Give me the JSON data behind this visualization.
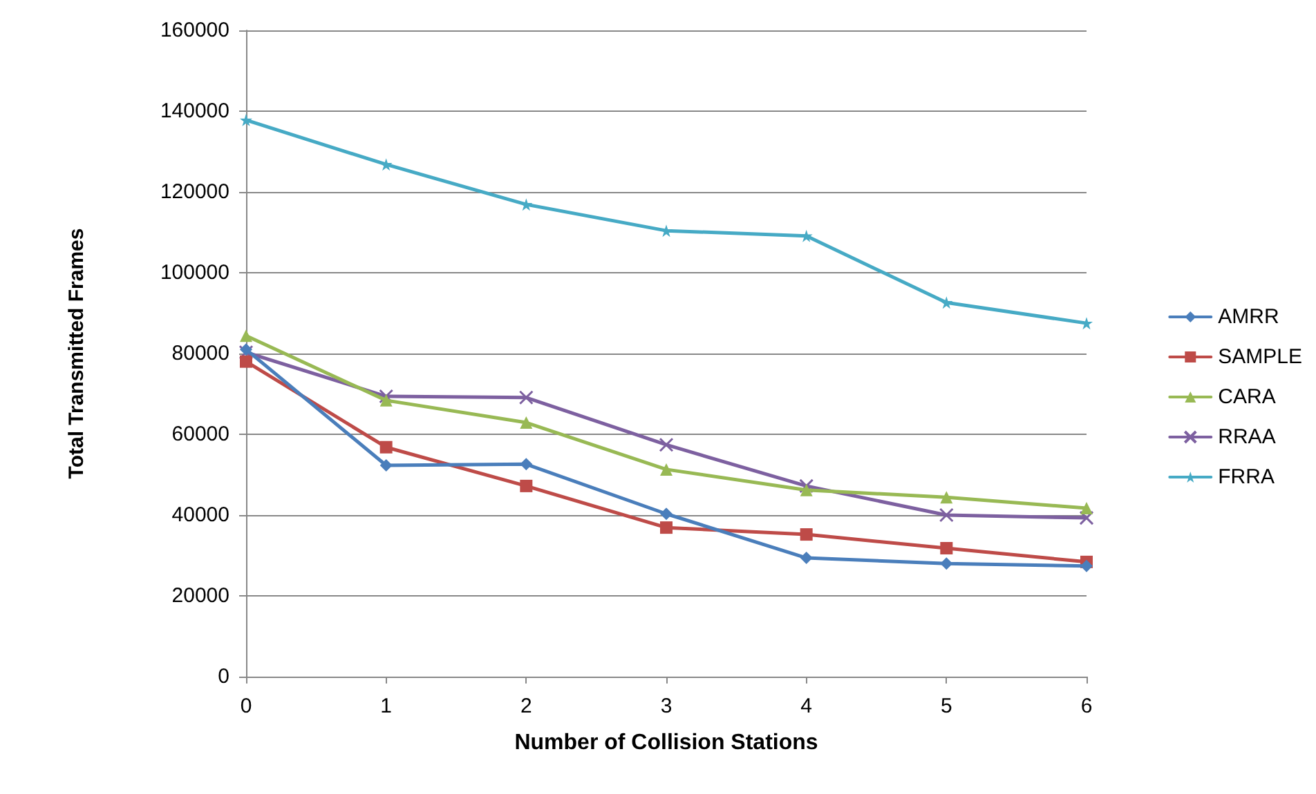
{
  "chart_data": {
    "type": "line",
    "xlabel": "Number of Collision Stations",
    "ylabel": "Total Transmitted Frames",
    "x": [
      0,
      1,
      2,
      3,
      4,
      5,
      6
    ],
    "xlim": [
      0,
      6
    ],
    "xticks": [
      0,
      1,
      2,
      3,
      4,
      5,
      6
    ],
    "ylim": [
      0,
      160000
    ],
    "yticks": [
      0,
      20000,
      40000,
      60000,
      80000,
      100000,
      120000,
      140000,
      160000
    ],
    "grid": "y",
    "legend": "right",
    "line_style": "solid",
    "series": [
      {
        "name": "AMRR",
        "color": "#4a7ebb",
        "marker": "diamond",
        "values": [
          81000,
          52300,
          52600,
          40300,
          29400,
          28000,
          27400
        ]
      },
      {
        "name": "SAMPLE",
        "color": "#be4b48",
        "marker": "square",
        "values": [
          78000,
          56800,
          47200,
          36900,
          35200,
          31800,
          28400
        ]
      },
      {
        "name": "CARA",
        "color": "#98b954",
        "marker": "triangle",
        "values": [
          84400,
          68400,
          62900,
          51300,
          46200,
          44400,
          41700
        ]
      },
      {
        "name": "RRAA",
        "color": "#7d60a0",
        "marker": "cross",
        "values": [
          80300,
          69400,
          69100,
          57400,
          47200,
          40000,
          39300
        ]
      },
      {
        "name": "FRRA",
        "color": "#46aac5",
        "marker": "star",
        "values": [
          137800,
          126800,
          116900,
          110400,
          109100,
          92600,
          87500
        ]
      }
    ]
  }
}
